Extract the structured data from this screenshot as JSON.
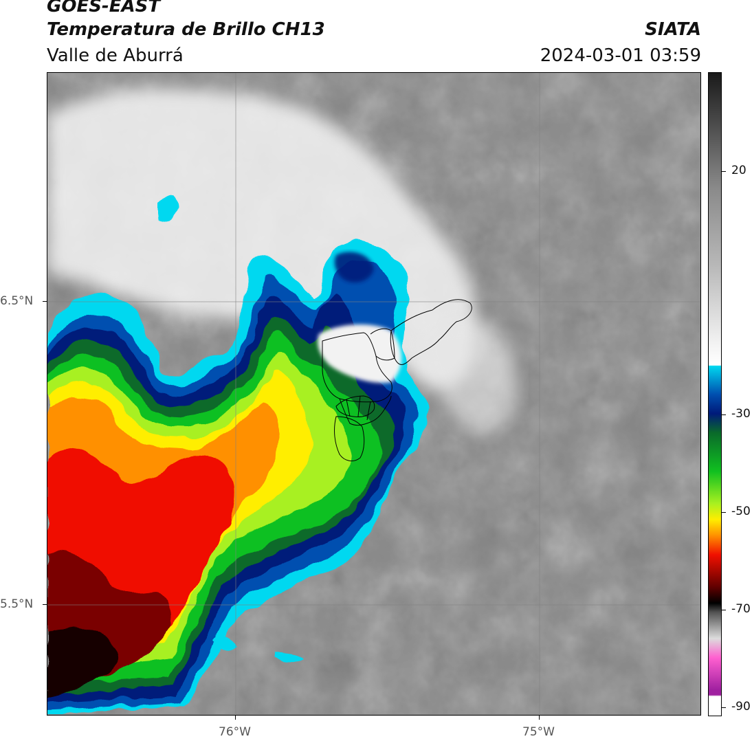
{
  "header": {
    "satellite": "GOES-EAST",
    "product": "Temperatura de Brillo CH13",
    "region": "Valle de Aburrá",
    "organization": "SIATA",
    "datetime": "2024-03-01 03:59"
  },
  "map": {
    "lat_labels": [
      "6.5°N",
      "5.5°N"
    ],
    "lon_labels": [
      "76°W",
      "75°W"
    ],
    "gridlines": true,
    "overlay": "municipal boundaries of Valle de Aburrá"
  },
  "colorbar": {
    "tick_labels": [
      "20",
      "-30",
      "-50",
      "-70",
      "-90"
    ],
    "colors": {
      "warm_gray_top": "#1a1a1a",
      "warm_gray_mid": "#8a8a8a",
      "near_white": "#f2f2f2",
      "cyan": "#00d8f0",
      "blue": "#0050b0",
      "navy": "#001a7a",
      "dark_green": "#0a6a2a",
      "green": "#10c020",
      "lime": "#a8f020",
      "yellow": "#ffee00",
      "orange": "#ff9000",
      "red": "#f01000",
      "dark_red": "#600000",
      "black": "#000000",
      "light_gray": "#dcdcdc",
      "pink": "#ff60d0",
      "magenta": "#a020a0",
      "white_bottom": "#ffffff"
    }
  }
}
